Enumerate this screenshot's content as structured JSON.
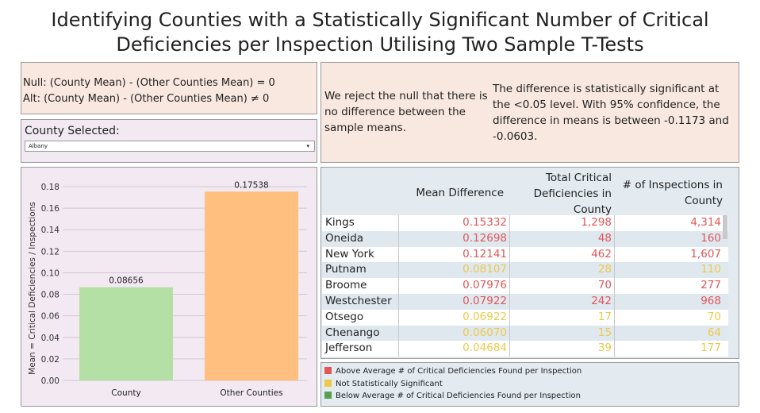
{
  "title": {
    "line1": "Identifying Counties with a Statistically Significant Number of Critical",
    "line2": "Deficiencies per Inspection Utilising Two Sample T-Tests"
  },
  "hypothesis": {
    "null": "Null: (County Mean) - (Other Counties Mean) = 0",
    "alt": "Alt: (County Mean) - (Other Counties Mean) ≠ 0"
  },
  "county_filter": {
    "label": "County Selected:",
    "selected": "Albany"
  },
  "result": {
    "conclusion": "We reject the null that there is no difference between the sample means.",
    "detail": "The difference is statistically significant at the <0.05 level. With 95% confidence, the difference in means is between -0.1173 and -0.0603."
  },
  "colors": {
    "above": "#e15759",
    "not_significant": "#edc948",
    "below": "#59a14f",
    "bar_county": "#b5e0a5",
    "bar_other": "#ffbf7f"
  },
  "chart_data": {
    "type": "bar",
    "categories": [
      "County",
      "Other Counties"
    ],
    "values": [
      0.08656,
      0.17538
    ],
    "value_labels": [
      "0.08656",
      "0.17538"
    ],
    "ylabel": "Mean = Critical Deficiencies / Inspections",
    "ylim": [
      0,
      0.18
    ],
    "yticks": [
      "0.00",
      "0.02",
      "0.04",
      "0.06",
      "0.08",
      "0.10",
      "0.12",
      "0.14",
      "0.16",
      "0.18"
    ],
    "grid": true
  },
  "table": {
    "headers": {
      "mean_difference": "Mean Difference",
      "total_critical": "Total Critical Deficiencies in County",
      "inspections": "# of Inspections in County"
    },
    "rows": [
      {
        "county": "Kings",
        "mean_diff": "0.15332",
        "total": "1,298",
        "inspections": "4,314",
        "status": "above"
      },
      {
        "county": "Oneida",
        "mean_diff": "0.12698",
        "total": "48",
        "inspections": "160",
        "status": "above"
      },
      {
        "county": "New York",
        "mean_diff": "0.12141",
        "total": "462",
        "inspections": "1,607",
        "status": "above"
      },
      {
        "county": "Putnam",
        "mean_diff": "0.08107",
        "total": "28",
        "inspections": "110",
        "status": "not_significant"
      },
      {
        "county": "Broome",
        "mean_diff": "0.07976",
        "total": "70",
        "inspections": "277",
        "status": "above"
      },
      {
        "county": "Westchester",
        "mean_diff": "0.07922",
        "total": "242",
        "inspections": "968",
        "status": "above"
      },
      {
        "county": "Otsego",
        "mean_diff": "0.06922",
        "total": "17",
        "inspections": "70",
        "status": "not_significant"
      },
      {
        "county": "Chenango",
        "mean_diff": "0.06070",
        "total": "15",
        "inspections": "64",
        "status": "not_significant"
      },
      {
        "county": "Jefferson",
        "mean_diff": "0.04684",
        "total": "39",
        "inspections": "177",
        "status": "not_significant"
      }
    ]
  },
  "legend": {
    "above": "Above Average # of Critical Deficiencies Found per Inspection",
    "not_significant": "Not Statistically Significant",
    "below": "Below Average # of Critical Deficiencies Found per Inspection"
  }
}
